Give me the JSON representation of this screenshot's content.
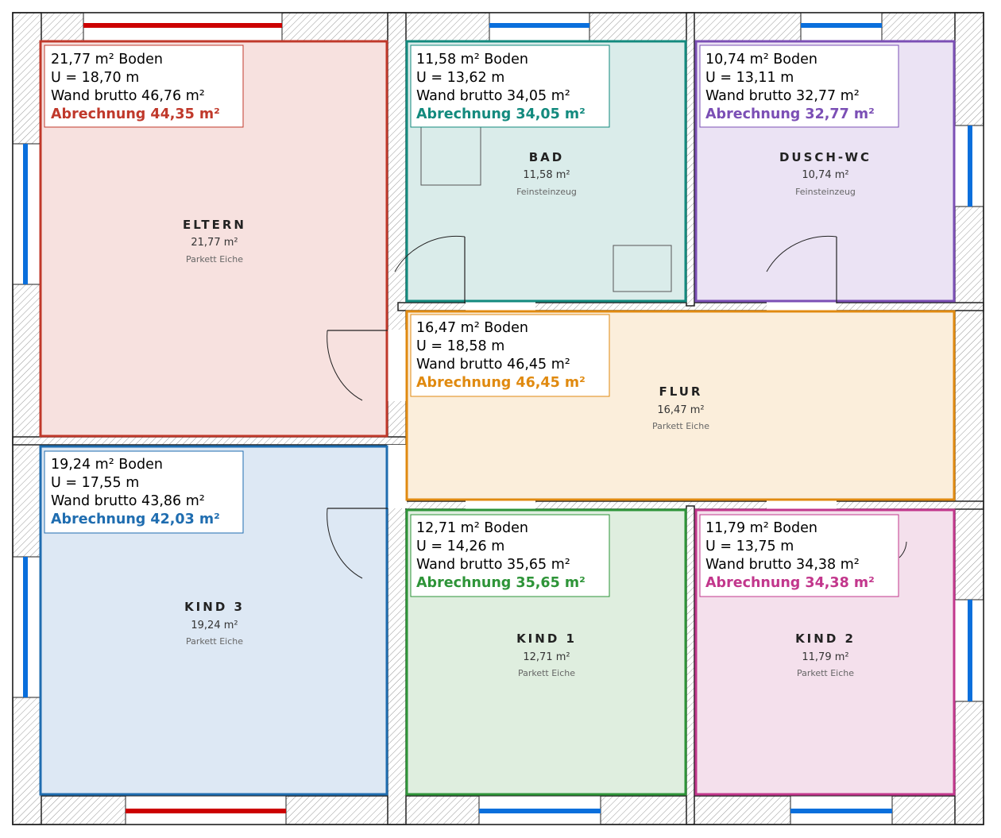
{
  "colors": {
    "window_red": "#cc0000",
    "window_blue": "#0a6fdc",
    "wall_hatch": "#9a9a9a",
    "wall_outline": "#222222"
  },
  "rooms": [
    {
      "name": "ELTERN",
      "area": "21,77 m²",
      "floor": "Parkett Eiche",
      "info": {
        "boden": "21,77 m² Boden",
        "umfang": "U = 18,70 m",
        "wand": "Wand brutto 46,76 m²",
        "abrechnung": "Abrechnung 44,35 m²"
      },
      "stroke": "#c0392b",
      "fill": "#f7e1df"
    },
    {
      "name": "BAD",
      "area": "11,58 m²",
      "floor": "Feinsteinzeug",
      "info": {
        "boden": "11,58 m² Boden",
        "umfang": "U = 13,62 m",
        "wand": "Wand brutto 34,05 m²",
        "abrechnung": "Abrechnung 34,05 m²"
      },
      "stroke": "#138a7e",
      "fill": "#daecea"
    },
    {
      "name": "DUSCH-WC",
      "area": "10,74 m²",
      "floor": "Feinsteinzeug",
      "info": {
        "boden": "10,74 m² Boden",
        "umfang": "U = 13,11 m",
        "wand": "Wand brutto 32,77 m²",
        "abrechnung": "Abrechnung 32,77 m²"
      },
      "stroke": "#7b4fb5",
      "fill": "#ebe3f4"
    },
    {
      "name": "FLUR",
      "area": "16,47 m²",
      "floor": "Parkett Eiche",
      "info": {
        "boden": "16,47 m² Boden",
        "umfang": "U = 18,58 m",
        "wand": "Wand brutto 46,45 m²",
        "abrechnung": "Abrechnung 46,45 m²"
      },
      "stroke": "#e08a10",
      "fill": "#fbeedb"
    },
    {
      "name": "KIND 3",
      "area": "19,24 m²",
      "floor": "Parkett Eiche",
      "info": {
        "boden": "19,24 m² Boden",
        "umfang": "U = 17,55 m",
        "wand": "Wand brutto 43,86 m²",
        "abrechnung": "Abrechnung 42,03 m²"
      },
      "stroke": "#1f6db0",
      "fill": "#dde8f4"
    },
    {
      "name": "KIND 1",
      "area": "12,71 m²",
      "floor": "Parkett Eiche",
      "info": {
        "boden": "12,71 m² Boden",
        "umfang": "U = 14,26 m",
        "wand": "Wand brutto 35,65 m²",
        "abrechnung": "Abrechnung 35,65 m²"
      },
      "stroke": "#2e9438",
      "fill": "#dfeedf"
    },
    {
      "name": "KIND 2",
      "area": "11,79 m²",
      "floor": "Parkett Eiche",
      "info": {
        "boden": "11,79 m² Boden",
        "umfang": "U = 13,75 m",
        "wand": "Wand brutto 34,38 m²",
        "abrechnung": "Abrechnung 34,38 m²"
      },
      "stroke": "#c2378c",
      "fill": "#f4e0ec"
    }
  ]
}
